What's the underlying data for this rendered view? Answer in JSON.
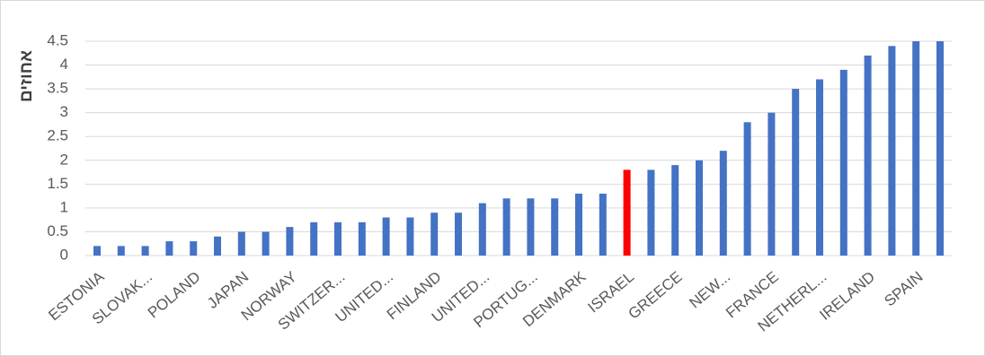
{
  "chart_data": {
    "type": "bar",
    "y_label": "אחוזים",
    "categories": [
      "ESTONIA",
      null,
      "SLOVAK...",
      null,
      "POLAND",
      null,
      "JAPAN",
      null,
      "NORWAY",
      null,
      "SWITZER...",
      null,
      "UNITED...",
      null,
      "FINLAND",
      null,
      "UNITED...",
      null,
      "PORTUG...",
      null,
      "DENMARK",
      null,
      "ISRAEL",
      null,
      "GREECE",
      null,
      "NEW...",
      null,
      "FRANCE",
      null,
      "NETHERL...",
      null,
      "IRELAND",
      null,
      "SPAIN",
      null
    ],
    "values": [
      0.2,
      0.2,
      0.2,
      0.3,
      0.3,
      0.4,
      0.5,
      0.5,
      0.6,
      0.7,
      0.7,
      0.7,
      0.8,
      0.8,
      0.9,
      0.9,
      1.1,
      1.2,
      1.2,
      1.2,
      1.3,
      1.3,
      1.8,
      1.8,
      1.9,
      2.0,
      2.2,
      2.8,
      3.0,
      3.5,
      3.7,
      3.9,
      4.2,
      4.4,
      4.5,
      4.5
    ],
    "colors": [
      "#4472c4",
      "#4472c4",
      "#4472c4",
      "#4472c4",
      "#4472c4",
      "#4472c4",
      "#4472c4",
      "#4472c4",
      "#4472c4",
      "#4472c4",
      "#4472c4",
      "#4472c4",
      "#4472c4",
      "#4472c4",
      "#4472c4",
      "#4472c4",
      "#4472c4",
      "#4472c4",
      "#4472c4",
      "#4472c4",
      "#4472c4",
      "#4472c4",
      "#ff0000",
      "#4472c4",
      "#4472c4",
      "#4472c4",
      "#4472c4",
      "#4472c4",
      "#4472c4",
      "#4472c4",
      "#4472c4",
      "#4472c4",
      "#4472c4",
      "#4472c4",
      "#4472c4",
      "#4472c4"
    ],
    "ylim": [
      0,
      4.5
    ],
    "yticks": [
      0,
      0.5,
      1,
      1.5,
      2,
      2.5,
      3,
      3.5,
      4,
      4.5
    ],
    "grid": true
  }
}
